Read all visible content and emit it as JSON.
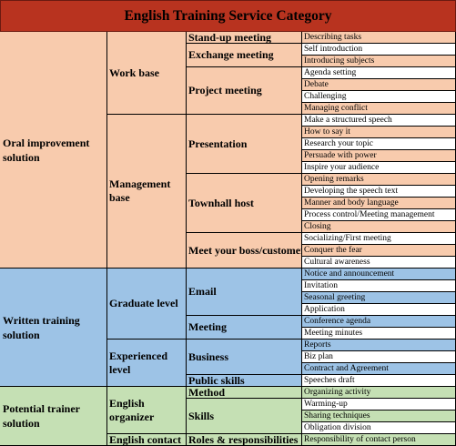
{
  "title": "English Training Service Category",
  "colors": {
    "title_bg": "#b8331f",
    "oral": "#f8cbad",
    "written": "#9dc3e6",
    "trainer": "#c5e0b4",
    "plain": "#ffffff"
  },
  "sections": [
    {
      "category": "Oral improvement solution",
      "color": "oral",
      "groups": [
        {
          "label": "Work base",
          "subs": [
            {
              "label": "Stand-up meeting",
              "items": [
                "Describing tasks"
              ]
            },
            {
              "label": "Exchange meeting",
              "items": [
                "Self introduction",
                "Introducing subjects"
              ]
            },
            {
              "label": "Project meeting",
              "items": [
                "Agenda setting",
                "Debate",
                "Challenging",
                "Managing conflict"
              ]
            }
          ]
        },
        {
          "label": "Management base",
          "subs": [
            {
              "label": "Presentation",
              "items": [
                "Make a structured speech",
                "How to say it",
                "Research your topic",
                "Persuade with power",
                "Inspire your audience"
              ]
            },
            {
              "label": "Townhall host",
              "items": [
                "Opening remarks",
                "Developing the speech text",
                "Manner and body language",
                "Process control/Meeting management",
                "Closing"
              ]
            },
            {
              "label": "Meet your boss/customer",
              "items": [
                "Socializing/First meeting",
                "Conquer the fear",
                "Cultural awareness"
              ]
            }
          ]
        }
      ]
    },
    {
      "category": "Written training solution",
      "color": "written",
      "groups": [
        {
          "label": "Graduate level",
          "subs": [
            {
              "label": "Email",
              "items": [
                "Notice and announcement",
                "Invitation",
                "Seasonal greeting",
                "Application"
              ]
            },
            {
              "label": "Meeting",
              "items": [
                "Conference agenda",
                "Meeting minutes"
              ]
            }
          ]
        },
        {
          "label": "Experienced level",
          "subs": [
            {
              "label": "Business",
              "items": [
                "Reports",
                "Biz plan",
                "Contract and Agreement"
              ]
            },
            {
              "label": "Public skills",
              "items": [
                "Speeches draft"
              ]
            }
          ]
        }
      ]
    },
    {
      "category": "Potential trainer solution",
      "color": "trainer",
      "groups": [
        {
          "label": "English organizer",
          "subs": [
            {
              "label": "Method",
              "items": [
                "Organizing activity"
              ]
            },
            {
              "label": "Skills",
              "items": [
                "Warming-up",
                "Sharing techniques",
                "Obligation division"
              ]
            }
          ]
        },
        {
          "label": "English contact",
          "subs": [
            {
              "label": "Roles & responsibilities",
              "items": [
                "Responsibility of contact person"
              ]
            }
          ]
        }
      ]
    }
  ]
}
